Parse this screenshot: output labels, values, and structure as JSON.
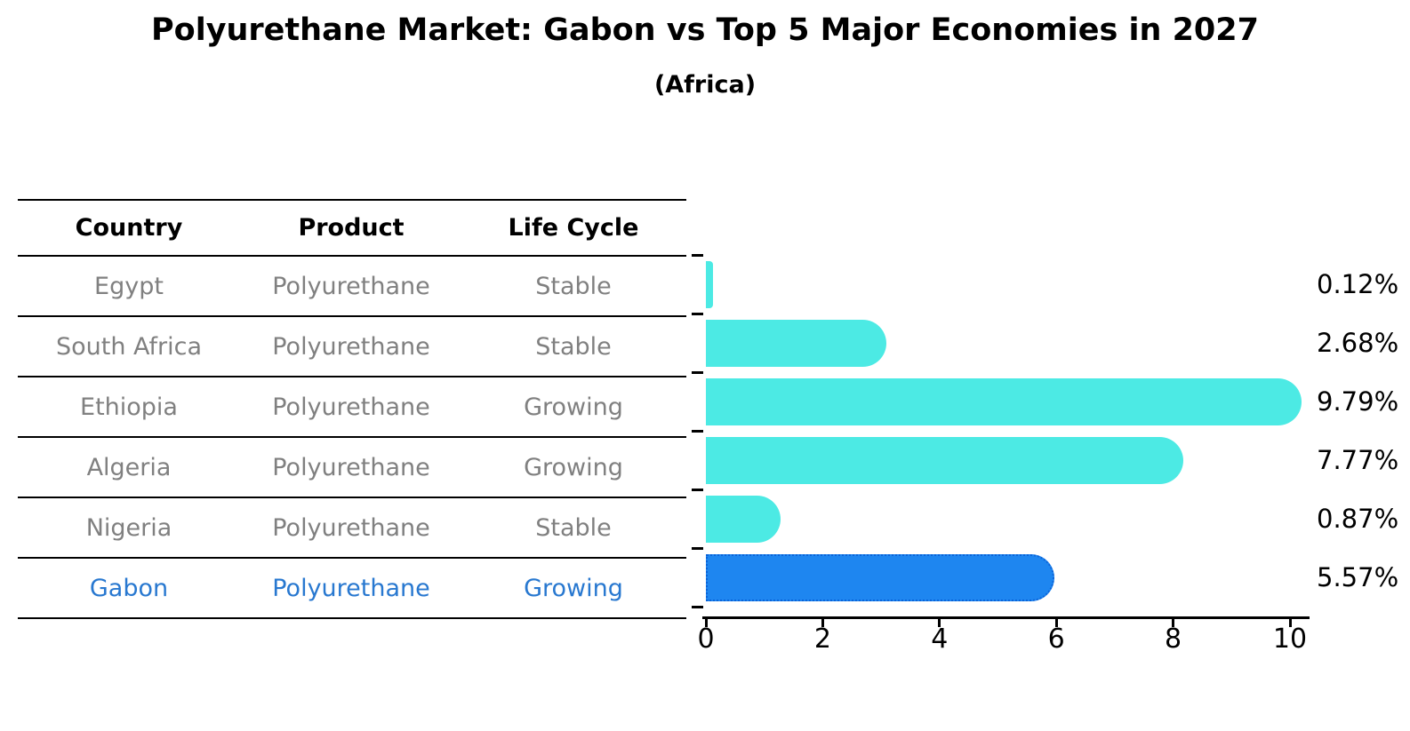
{
  "title": "Polyurethane Market: Gabon vs Top 5 Major Economies in 2027",
  "subtitle": "(Africa)",
  "table": {
    "headers": [
      "Country",
      "Product",
      "Life Cycle"
    ]
  },
  "chart_data": {
    "type": "bar",
    "orientation": "horizontal",
    "title": "Polyurethane Market: Gabon vs Top 5 Major Economies in 2027",
    "subtitle": "(Africa)",
    "xlabel": "",
    "ylabel": "",
    "xlim": [
      0,
      10
    ],
    "x_ticks": [
      0,
      2,
      4,
      6,
      8,
      10
    ],
    "x_tick_labels": [
      "0",
      "2",
      "4",
      "6",
      "8",
      "10"
    ],
    "grid": false,
    "legend": false,
    "categories": [
      "Egypt",
      "South Africa",
      "Ethiopia",
      "Algeria",
      "Nigeria",
      "Gabon"
    ],
    "values": [
      0.12,
      2.68,
      9.79,
      7.77,
      0.87,
      5.57
    ],
    "value_labels": [
      "0.12%",
      "2.68%",
      "9.79%",
      "7.77%",
      "0.87%",
      "5.57%"
    ],
    "rows": [
      {
        "country": "Egypt",
        "product": "Polyurethane",
        "life_cycle": "Stable",
        "value": 0.12,
        "value_label": "0.12%",
        "highlight": false
      },
      {
        "country": "South Africa",
        "product": "Polyurethane",
        "life_cycle": "Stable",
        "value": 2.68,
        "value_label": "2.68%",
        "highlight": false
      },
      {
        "country": "Ethiopia",
        "product": "Polyurethane",
        "life_cycle": "Growing",
        "value": 9.79,
        "value_label": "9.79%",
        "highlight": false
      },
      {
        "country": "Algeria",
        "product": "Polyurethane",
        "life_cycle": "Growing",
        "value": 7.77,
        "value_label": "7.77%",
        "highlight": false
      },
      {
        "country": "Nigeria",
        "product": "Polyurethane",
        "life_cycle": "Stable",
        "value": 0.87,
        "value_label": "0.87%",
        "highlight": false
      },
      {
        "country": "Gabon",
        "product": "Polyurethane",
        "life_cycle": "Growing",
        "value": 5.57,
        "value_label": "5.57%",
        "highlight": true
      }
    ]
  },
  "colors": {
    "bar": "#4CEAE4",
    "highlight_bar": "#1E86F0",
    "highlight_bar_border": "#0B63D8",
    "row_text": "#808080",
    "highlight_row_text": "#2878D0",
    "header_text": "#000000",
    "axis": "#000000"
  }
}
